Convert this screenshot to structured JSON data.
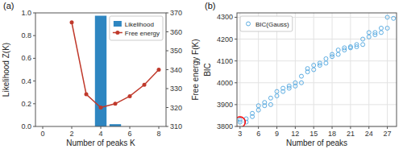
{
  "chart_data": [
    {
      "type": "bar",
      "annotations": [
        "(a)"
      ],
      "xlabel": "Number of peaks K",
      "ylabel": "Likelihood Z(K)",
      "y2label": "Free energy F(K)",
      "xlim": [
        -0.5,
        8.5
      ],
      "xticks": [
        0,
        2,
        4,
        6,
        8
      ],
      "ylim": [
        0,
        1.0
      ],
      "yticks": [
        {
          "value": 0,
          "label": "0.0"
        },
        {
          "value": 0.2,
          "label": "0.2"
        },
        {
          "value": 0.4,
          "label": "0.4"
        },
        {
          "value": 0.6,
          "label": "0.6"
        },
        {
          "value": 0.8,
          "label": "0.8"
        },
        {
          "value": 1.0,
          "label": "1.0"
        }
      ],
      "y2lim": [
        310,
        370
      ],
      "y2ticks": [
        310,
        320,
        330,
        340,
        350,
        360,
        370
      ],
      "series": [
        {
          "name": "Likelihood",
          "type": "bar",
          "color": "#2e86c1",
          "x": [
            0,
            1,
            2,
            3,
            4,
            5,
            6,
            7,
            8
          ],
          "values": [
            0.0,
            0.0,
            0.0,
            0.0,
            0.975,
            0.02,
            0.0,
            0.0,
            0.0
          ]
        },
        {
          "name": "Free energy",
          "type": "line",
          "axis": "y2",
          "color": "#c0392b",
          "marker": "o",
          "x": [
            2,
            3,
            4,
            5,
            6,
            7,
            8
          ],
          "values": [
            365,
            327,
            320,
            322,
            326,
            332,
            340
          ]
        }
      ],
      "legend": "upper right",
      "grid": false
    },
    {
      "type": "scatter",
      "annotations": [
        "(b)"
      ],
      "xlabel": "Number of peaks",
      "ylabel": "BIC",
      "xlim": [
        2.5,
        28.5
      ],
      "xticks": [
        3,
        6,
        9,
        12,
        15,
        18,
        21,
        24,
        27
      ],
      "ylim": [
        3800,
        4320
      ],
      "yticks": [
        3800,
        3900,
        4000,
        4100,
        4200,
        4300
      ],
      "series": [
        {
          "name": "BIC(Gauss)",
          "type": "scatter",
          "color": "#5dade2",
          "marker": "o",
          "x": [
            3,
            3,
            4,
            4,
            5,
            5,
            6,
            6,
            7,
            7,
            8,
            8,
            9,
            9,
            10,
            10,
            11,
            11,
            12,
            12,
            13,
            13,
            14,
            14,
            15,
            15,
            16,
            16,
            17,
            17,
            18,
            18,
            19,
            19,
            20,
            20,
            21,
            21,
            22,
            22,
            23,
            23,
            24,
            24,
            25,
            25,
            26,
            26,
            27,
            27,
            28
          ],
          "values": [
            3820,
            3830,
            3820,
            3835,
            3845,
            3860,
            3875,
            3895,
            3895,
            3910,
            3900,
            3930,
            3940,
            3960,
            3960,
            3975,
            3975,
            3985,
            3985,
            4000,
            4000,
            4030,
            4050,
            4065,
            4060,
            4080,
            4080,
            4090,
            4090,
            4110,
            4120,
            4130,
            4130,
            4150,
            4150,
            4160,
            4160,
            4165,
            4165,
            4175,
            4175,
            4200,
            4210,
            4230,
            4220,
            4230,
            4230,
            4250,
            4250,
            4300,
            4295
          ]
        },
        {
          "type": "scatter",
          "color": "red",
          "marker": "o",
          "x": [
            3
          ],
          "values": [
            3820
          ]
        }
      ],
      "legend": "upper left",
      "grid": true
    }
  ]
}
